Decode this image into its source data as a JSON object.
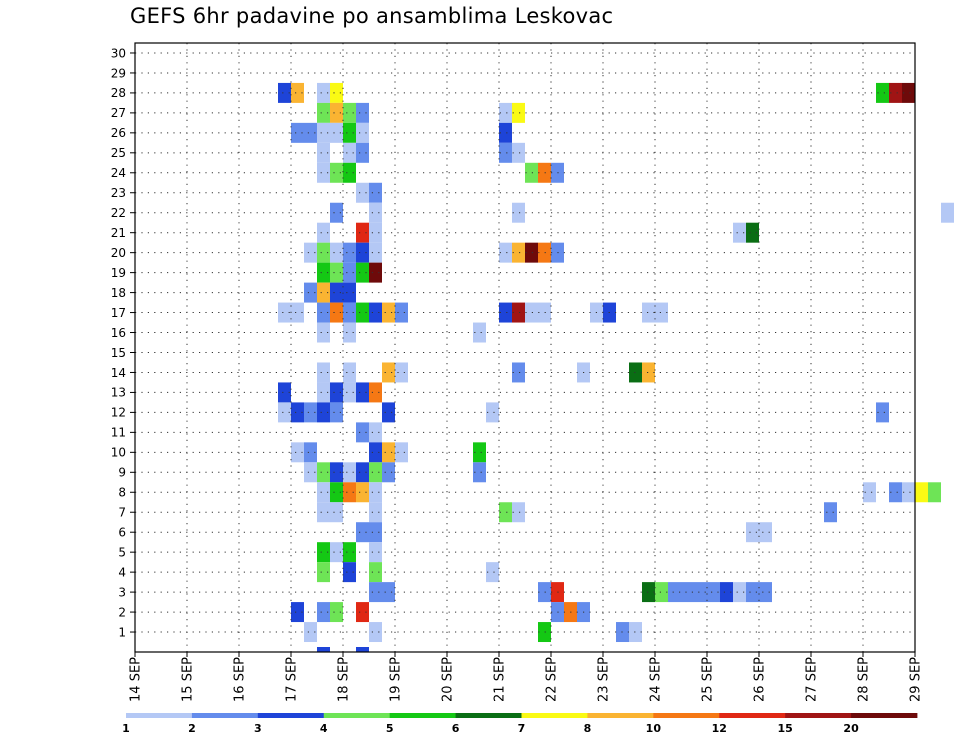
{
  "chart_data": {
    "type": "heatmap",
    "title": "GEFS 6hr padavine po ansamblima Leskovac",
    "xlabel": "",
    "ylabel": "",
    "x_ticks": [
      "14 SEP",
      "15 SEP",
      "16 SEP",
      "17 SEP",
      "18 SEP",
      "19 SEP",
      "20 SEP",
      "21 SEP",
      "22 SEP",
      "23 SEP",
      "24 SEP",
      "25 SEP",
      "26 SEP",
      "27 SEP",
      "28 SEP",
      "29 SEP"
    ],
    "x_range_days": [
      14,
      29
    ],
    "time_step_hours": 6,
    "y_members": [
      1,
      2,
      3,
      4,
      5,
      6,
      7,
      8,
      9,
      10,
      11,
      12,
      13,
      14,
      15,
      16,
      17,
      18,
      19,
      20,
      21,
      22,
      23,
      24,
      25,
      26,
      27,
      28,
      29,
      30
    ],
    "grid": true,
    "color_scale": {
      "levels": [
        1,
        2,
        3,
        4,
        5,
        6,
        7,
        8,
        10,
        12,
        15,
        20
      ],
      "colors": [
        "#b4c8f5",
        "#648cec",
        "#1e44d8",
        "#6ee456",
        "#14c814",
        "#0a6e14",
        "#fafa14",
        "#fab432",
        "#f57814",
        "#e02814",
        "#a01414",
        "#6e0a0a"
      ],
      "labels": [
        "1",
        "2",
        "3",
        "4",
        "5",
        "6",
        "7",
        "8",
        "10",
        "12",
        "15",
        "20"
      ]
    },
    "cells_note": "each entry: [valid date (day of Sep), hour UTC, ensemble member, color class index 0-11]",
    "cells": [
      [
        17,
        0,
        28,
        2
      ],
      [
        17,
        6,
        28,
        7
      ],
      [
        17,
        18,
        28,
        0
      ],
      [
        18,
        0,
        28,
        6
      ],
      [
        28,
        12,
        28,
        4
      ],
      [
        28,
        18,
        28,
        10
      ],
      [
        29,
        0,
        28,
        11
      ],
      [
        17,
        18,
        27,
        3
      ],
      [
        18,
        0,
        27,
        7
      ],
      [
        18,
        6,
        27,
        3
      ],
      [
        18,
        12,
        27,
        1
      ],
      [
        21,
        6,
        27,
        0
      ],
      [
        21,
        12,
        27,
        6
      ],
      [
        17,
        6,
        26,
        1
      ],
      [
        17,
        12,
        26,
        1
      ],
      [
        17,
        18,
        26,
        0
      ],
      [
        18,
        0,
        26,
        0
      ],
      [
        18,
        6,
        26,
        4
      ],
      [
        18,
        12,
        26,
        0
      ],
      [
        21,
        6,
        26,
        2
      ],
      [
        17,
        18,
        25,
        0
      ],
      [
        18,
        6,
        25,
        0
      ],
      [
        18,
        12,
        25,
        1
      ],
      [
        21,
        6,
        25,
        1
      ],
      [
        21,
        12,
        25,
        0
      ],
      [
        17,
        18,
        24,
        0
      ],
      [
        18,
        0,
        24,
        3
      ],
      [
        18,
        6,
        24,
        4
      ],
      [
        21,
        18,
        24,
        3
      ],
      [
        22,
        0,
        24,
        8
      ],
      [
        22,
        6,
        24,
        1
      ],
      [
        18,
        12,
        23,
        0
      ],
      [
        18,
        18,
        23,
        1
      ],
      [
        18,
        0,
        22,
        1
      ],
      [
        18,
        18,
        22,
        0
      ],
      [
        21,
        12,
        22,
        0
      ],
      [
        29,
        18,
        22,
        0
      ],
      [
        17,
        18,
        21,
        0
      ],
      [
        18,
        12,
        21,
        9
      ],
      [
        18,
        18,
        21,
        0
      ],
      [
        25,
        18,
        21,
        0
      ],
      [
        26,
        0,
        21,
        5
      ],
      [
        17,
        12,
        20,
        0
      ],
      [
        17,
        18,
        20,
        3
      ],
      [
        18,
        0,
        20,
        0
      ],
      [
        18,
        6,
        20,
        1
      ],
      [
        18,
        12,
        20,
        2
      ],
      [
        18,
        18,
        20,
        0
      ],
      [
        21,
        6,
        20,
        0
      ],
      [
        21,
        12,
        20,
        7
      ],
      [
        21,
        18,
        20,
        11
      ],
      [
        22,
        0,
        20,
        8
      ],
      [
        22,
        6,
        20,
        1
      ],
      [
        17,
        18,
        19,
        4
      ],
      [
        18,
        0,
        19,
        3
      ],
      [
        18,
        6,
        19,
        1
      ],
      [
        18,
        12,
        19,
        4
      ],
      [
        18,
        18,
        19,
        11
      ],
      [
        17,
        12,
        18,
        1
      ],
      [
        17,
        18,
        18,
        7
      ],
      [
        18,
        0,
        18,
        2
      ],
      [
        18,
        6,
        18,
        2
      ],
      [
        17,
        0,
        17,
        0
      ],
      [
        17,
        6,
        17,
        0
      ],
      [
        17,
        18,
        17,
        1
      ],
      [
        18,
        0,
        17,
        8
      ],
      [
        18,
        6,
        17,
        1
      ],
      [
        18,
        12,
        17,
        4
      ],
      [
        18,
        18,
        17,
        2
      ],
      [
        19,
        0,
        17,
        7
      ],
      [
        19,
        6,
        17,
        1
      ],
      [
        21,
        6,
        17,
        2
      ],
      [
        21,
        12,
        17,
        10
      ],
      [
        21,
        18,
        17,
        0
      ],
      [
        22,
        0,
        17,
        0
      ],
      [
        23,
        0,
        17,
        0
      ],
      [
        23,
        6,
        17,
        2
      ],
      [
        24,
        0,
        17,
        0
      ],
      [
        24,
        6,
        17,
        0
      ],
      [
        17,
        18,
        16,
        0
      ],
      [
        18,
        6,
        16,
        0
      ],
      [
        20,
        18,
        16,
        0
      ],
      [
        17,
        18,
        14,
        0
      ],
      [
        18,
        6,
        14,
        0
      ],
      [
        19,
        0,
        14,
        7
      ],
      [
        19,
        6,
        14,
        0
      ],
      [
        21,
        12,
        14,
        1
      ],
      [
        22,
        18,
        14,
        0
      ],
      [
        23,
        18,
        14,
        5
      ],
      [
        24,
        0,
        14,
        7
      ],
      [
        17,
        0,
        13,
        2
      ],
      [
        17,
        18,
        13,
        0
      ],
      [
        18,
        0,
        13,
        2
      ],
      [
        18,
        6,
        13,
        0
      ],
      [
        18,
        12,
        13,
        2
      ],
      [
        18,
        18,
        13,
        8
      ],
      [
        17,
        0,
        12,
        0
      ],
      [
        17,
        6,
        12,
        2
      ],
      [
        17,
        12,
        12,
        1
      ],
      [
        17,
        18,
        12,
        2
      ],
      [
        18,
        0,
        12,
        1
      ],
      [
        19,
        0,
        12,
        2
      ],
      [
        21,
        0,
        12,
        0
      ],
      [
        28,
        12,
        12,
        1
      ],
      [
        18,
        12,
        11,
        1
      ],
      [
        18,
        18,
        11,
        0
      ],
      [
        17,
        6,
        10,
        0
      ],
      [
        17,
        12,
        10,
        1
      ],
      [
        18,
        18,
        10,
        2
      ],
      [
        19,
        0,
        10,
        7
      ],
      [
        19,
        6,
        10,
        0
      ],
      [
        20,
        18,
        10,
        4
      ],
      [
        17,
        12,
        9,
        0
      ],
      [
        17,
        18,
        9,
        3
      ],
      [
        18,
        0,
        9,
        2
      ],
      [
        18,
        6,
        9,
        0
      ],
      [
        18,
        12,
        9,
        2
      ],
      [
        18,
        18,
        9,
        3
      ],
      [
        19,
        0,
        9,
        1
      ],
      [
        20,
        18,
        9,
        1
      ],
      [
        17,
        18,
        8,
        0
      ],
      [
        18,
        0,
        8,
        4
      ],
      [
        18,
        6,
        8,
        8
      ],
      [
        18,
        12,
        8,
        7
      ],
      [
        18,
        18,
        8,
        0
      ],
      [
        28,
        6,
        8,
        0
      ],
      [
        28,
        18,
        8,
        1
      ],
      [
        29,
        0,
        8,
        0
      ],
      [
        29,
        6,
        8,
        6
      ],
      [
        29,
        12,
        8,
        3
      ],
      [
        17,
        18,
        7,
        0
      ],
      [
        18,
        0,
        7,
        0
      ],
      [
        18,
        18,
        7,
        0
      ],
      [
        21,
        6,
        7,
        3
      ],
      [
        21,
        12,
        7,
        0
      ],
      [
        27,
        12,
        7,
        1
      ],
      [
        18,
        12,
        6,
        1
      ],
      [
        18,
        18,
        6,
        1
      ],
      [
        26,
        0,
        6,
        0
      ],
      [
        26,
        6,
        6,
        0
      ],
      [
        17,
        18,
        5,
        4
      ],
      [
        18,
        0,
        5,
        0
      ],
      [
        18,
        6,
        5,
        4
      ],
      [
        18,
        18,
        5,
        0
      ],
      [
        17,
        18,
        4,
        3
      ],
      [
        18,
        6,
        4,
        2
      ],
      [
        18,
        18,
        4,
        3
      ],
      [
        21,
        0,
        4,
        0
      ],
      [
        18,
        18,
        3,
        1
      ],
      [
        19,
        0,
        3,
        1
      ],
      [
        22,
        0,
        3,
        1
      ],
      [
        22,
        6,
        3,
        9
      ],
      [
        24,
        0,
        3,
        5
      ],
      [
        24,
        6,
        3,
        3
      ],
      [
        24,
        12,
        3,
        1
      ],
      [
        24,
        18,
        3,
        1
      ],
      [
        25,
        0,
        3,
        1
      ],
      [
        25,
        6,
        3,
        1
      ],
      [
        25,
        12,
        3,
        2
      ],
      [
        25,
        18,
        3,
        0
      ],
      [
        26,
        0,
        3,
        1
      ],
      [
        26,
        6,
        3,
        1
      ],
      [
        17,
        6,
        2,
        2
      ],
      [
        17,
        18,
        2,
        1
      ],
      [
        18,
        0,
        2,
        3
      ],
      [
        18,
        12,
        2,
        9
      ],
      [
        22,
        6,
        2,
        1
      ],
      [
        22,
        12,
        2,
        8
      ],
      [
        22,
        18,
        2,
        1
      ],
      [
        17,
        12,
        1,
        0
      ],
      [
        18,
        18,
        1,
        0
      ],
      [
        22,
        0,
        1,
        4
      ],
      [
        23,
        12,
        1,
        1
      ],
      [
        23,
        18,
        1,
        0
      ]
    ],
    "edge_marks": [
      [
        17,
        18
      ],
      [
        18,
        12
      ]
    ]
  }
}
